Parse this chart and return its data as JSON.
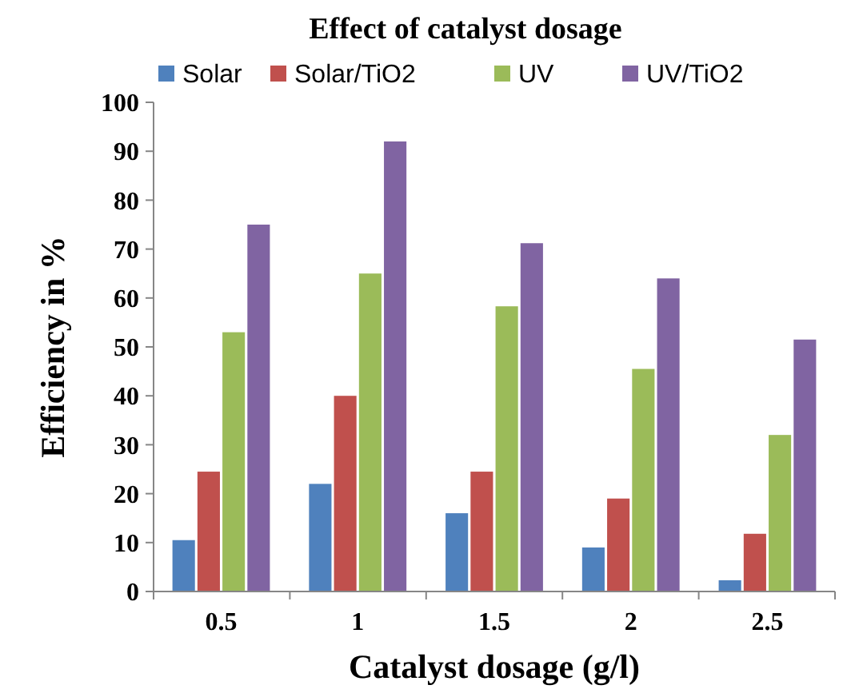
{
  "chart_data": {
    "type": "bar",
    "title": "Effect of catalyst dosage",
    "xlabel": "Catalyst dosage (g/l)",
    "ylabel": "Efficiency in %",
    "categories": [
      "0.5",
      "1",
      "1.5",
      "2",
      "2.5"
    ],
    "series": [
      {
        "name": "Solar",
        "color": "#4f81bd",
        "values": [
          10.5,
          22,
          16,
          9,
          2.3
        ]
      },
      {
        "name": "Solar/TiO2",
        "color": "#c0504d",
        "values": [
          24.5,
          40,
          24.5,
          19,
          11.8
        ]
      },
      {
        "name": "UV",
        "color": "#9bbb59",
        "values": [
          53,
          65,
          58.3,
          45.5,
          32
        ]
      },
      {
        "name": "UV/TiO2",
        "color": "#8064a2",
        "values": [
          75,
          92,
          71.2,
          64,
          51.5
        ]
      }
    ],
    "ylim": [
      0,
      100
    ],
    "yticks": [
      0,
      10,
      20,
      30,
      40,
      50,
      60,
      70,
      80,
      90,
      100
    ],
    "legend": "top",
    "grid": false
  }
}
